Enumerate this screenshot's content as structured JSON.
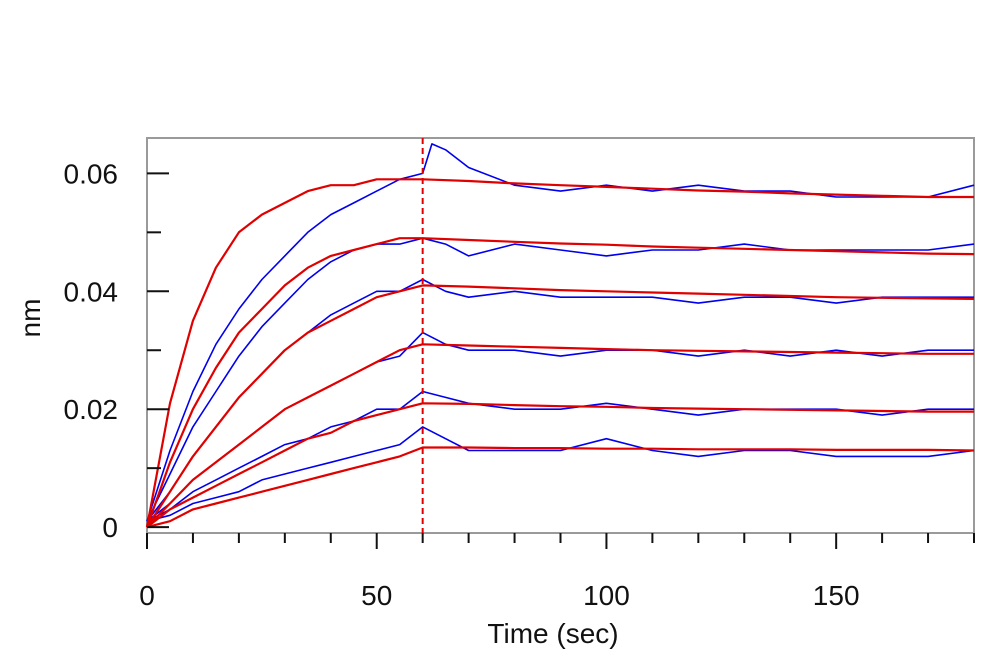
{
  "chart_data": {
    "type": "line",
    "title": "",
    "xlabel": "Time (sec)",
    "ylabel": "nm",
    "xlim": [
      0,
      180
    ],
    "ylim": [
      -0.001,
      0.066
    ],
    "x_ticks": [
      0,
      50,
      100,
      150
    ],
    "x_minor_step": 10,
    "y_ticks": [
      0,
      0.02,
      0.04,
      0.06
    ],
    "y_tick_labels": [
      "0",
      "0.02",
      "0.04",
      "0.06"
    ],
    "y_minor_step": 0.01,
    "grid": false,
    "legend": "none",
    "marker_line": {
      "x": 60,
      "style": "dashed",
      "color": "#e00000"
    },
    "colors": {
      "measured": "#0000ee",
      "fit": "#e00000",
      "axis": "#111111"
    },
    "series": [
      {
        "kind": "measured",
        "x": [
          0,
          5,
          10,
          15,
          20,
          25,
          30,
          35,
          40,
          45,
          50,
          55,
          60,
          62,
          65,
          70,
          80,
          90,
          100,
          110,
          120,
          130,
          140,
          150,
          160,
          170,
          180
        ],
        "y": [
          0.001,
          0.013,
          0.023,
          0.031,
          0.037,
          0.042,
          0.046,
          0.05,
          0.053,
          0.055,
          0.057,
          0.059,
          0.06,
          0.065,
          0.064,
          0.061,
          0.058,
          0.057,
          0.058,
          0.057,
          0.058,
          0.057,
          0.057,
          0.056,
          0.056,
          0.056,
          0.058
        ]
      },
      {
        "kind": "measured",
        "x": [
          0,
          5,
          10,
          15,
          20,
          25,
          30,
          35,
          40,
          45,
          50,
          55,
          60,
          65,
          70,
          80,
          90,
          100,
          110,
          120,
          130,
          140,
          150,
          160,
          170,
          180
        ],
        "y": [
          0.001,
          0.009,
          0.017,
          0.023,
          0.029,
          0.034,
          0.038,
          0.042,
          0.045,
          0.047,
          0.048,
          0.048,
          0.049,
          0.048,
          0.046,
          0.048,
          0.047,
          0.046,
          0.047,
          0.047,
          0.048,
          0.047,
          0.047,
          0.047,
          0.047,
          0.048
        ]
      },
      {
        "kind": "measured",
        "x": [
          0,
          5,
          10,
          15,
          20,
          25,
          30,
          35,
          40,
          45,
          50,
          55,
          60,
          65,
          70,
          80,
          90,
          100,
          110,
          120,
          130,
          140,
          150,
          160,
          170,
          180
        ],
        "y": [
          0.001,
          0.006,
          0.012,
          0.017,
          0.022,
          0.026,
          0.03,
          0.033,
          0.036,
          0.038,
          0.04,
          0.04,
          0.042,
          0.04,
          0.039,
          0.04,
          0.039,
          0.039,
          0.039,
          0.038,
          0.039,
          0.039,
          0.038,
          0.039,
          0.039,
          0.039
        ]
      },
      {
        "kind": "measured",
        "x": [
          0,
          5,
          10,
          15,
          20,
          25,
          30,
          35,
          40,
          45,
          50,
          55,
          60,
          65,
          70,
          80,
          90,
          100,
          110,
          120,
          130,
          140,
          150,
          160,
          170,
          180
        ],
        "y": [
          0.001,
          0.004,
          0.008,
          0.011,
          0.014,
          0.017,
          0.02,
          0.022,
          0.024,
          0.026,
          0.028,
          0.029,
          0.033,
          0.031,
          0.03,
          0.03,
          0.029,
          0.03,
          0.03,
          0.029,
          0.03,
          0.029,
          0.03,
          0.029,
          0.03,
          0.03
        ]
      },
      {
        "kind": "measured",
        "x": [
          0,
          5,
          10,
          15,
          20,
          25,
          30,
          35,
          40,
          45,
          50,
          55,
          60,
          65,
          70,
          80,
          90,
          100,
          110,
          120,
          130,
          140,
          150,
          160,
          170,
          180
        ],
        "y": [
          0.001,
          0.003,
          0.006,
          0.008,
          0.01,
          0.012,
          0.014,
          0.015,
          0.017,
          0.018,
          0.02,
          0.02,
          0.023,
          0.022,
          0.021,
          0.02,
          0.02,
          0.021,
          0.02,
          0.019,
          0.02,
          0.02,
          0.02,
          0.019,
          0.02,
          0.02
        ]
      },
      {
        "kind": "measured",
        "x": [
          0,
          5,
          10,
          15,
          20,
          25,
          30,
          35,
          40,
          45,
          50,
          55,
          60,
          65,
          70,
          80,
          90,
          100,
          110,
          120,
          130,
          140,
          150,
          160,
          170,
          180
        ],
        "y": [
          0.001,
          0.002,
          0.004,
          0.005,
          0.006,
          0.008,
          0.009,
          0.01,
          0.011,
          0.012,
          0.013,
          0.014,
          0.017,
          0.015,
          0.013,
          0.013,
          0.013,
          0.015,
          0.013,
          0.012,
          0.013,
          0.013,
          0.012,
          0.012,
          0.012,
          0.013
        ]
      },
      {
        "kind": "fit",
        "x": [
          0,
          5,
          10,
          15,
          20,
          25,
          30,
          35,
          40,
          45,
          50,
          55,
          60,
          70,
          80,
          90,
          100,
          110,
          120,
          130,
          140,
          150,
          160,
          170,
          180
        ],
        "y": [
          0.0,
          0.021,
          0.035,
          0.044,
          0.05,
          0.053,
          0.055,
          0.057,
          0.058,
          0.058,
          0.059,
          0.059,
          0.059,
          0.0587,
          0.0583,
          0.058,
          0.0577,
          0.0574,
          0.0571,
          0.0569,
          0.0566,
          0.0564,
          0.0562,
          0.056,
          0.056
        ]
      },
      {
        "kind": "fit",
        "x": [
          0,
          5,
          10,
          15,
          20,
          25,
          30,
          35,
          40,
          45,
          50,
          55,
          60,
          70,
          80,
          90,
          100,
          110,
          120,
          130,
          140,
          150,
          160,
          170,
          180
        ],
        "y": [
          0.0,
          0.011,
          0.02,
          0.027,
          0.033,
          0.037,
          0.041,
          0.044,
          0.046,
          0.047,
          0.048,
          0.049,
          0.049,
          0.0487,
          0.0484,
          0.0481,
          0.0479,
          0.0476,
          0.0474,
          0.0472,
          0.047,
          0.0468,
          0.0466,
          0.0464,
          0.0463
        ]
      },
      {
        "kind": "fit",
        "x": [
          0,
          5,
          10,
          15,
          20,
          25,
          30,
          35,
          40,
          45,
          50,
          55,
          60,
          70,
          80,
          90,
          100,
          110,
          120,
          130,
          140,
          150,
          160,
          170,
          180
        ],
        "y": [
          0.0,
          0.006,
          0.012,
          0.017,
          0.022,
          0.026,
          0.03,
          0.033,
          0.035,
          0.037,
          0.039,
          0.04,
          0.041,
          0.0408,
          0.0405,
          0.0402,
          0.04,
          0.0398,
          0.0396,
          0.0394,
          0.0392,
          0.039,
          0.0389,
          0.0388,
          0.0387
        ]
      },
      {
        "kind": "fit",
        "x": [
          0,
          5,
          10,
          15,
          20,
          25,
          30,
          35,
          40,
          45,
          50,
          55,
          60,
          70,
          80,
          90,
          100,
          110,
          120,
          130,
          140,
          150,
          160,
          170,
          180
        ],
        "y": [
          0.0,
          0.004,
          0.008,
          0.011,
          0.014,
          0.017,
          0.02,
          0.022,
          0.024,
          0.026,
          0.028,
          0.03,
          0.031,
          0.0308,
          0.0306,
          0.0304,
          0.0302,
          0.03,
          0.0299,
          0.0298,
          0.0297,
          0.0296,
          0.0295,
          0.0294,
          0.0294
        ]
      },
      {
        "kind": "fit",
        "x": [
          0,
          5,
          10,
          15,
          20,
          25,
          30,
          35,
          40,
          45,
          50,
          55,
          60,
          70,
          80,
          90,
          100,
          110,
          120,
          130,
          140,
          150,
          160,
          170,
          180
        ],
        "y": [
          0.0,
          0.003,
          0.005,
          0.007,
          0.009,
          0.011,
          0.013,
          0.015,
          0.016,
          0.018,
          0.019,
          0.02,
          0.021,
          0.0209,
          0.0207,
          0.0205,
          0.0204,
          0.0202,
          0.0201,
          0.02,
          0.0199,
          0.0198,
          0.0197,
          0.0196,
          0.0196
        ]
      },
      {
        "kind": "fit",
        "x": [
          0,
          5,
          10,
          15,
          20,
          25,
          30,
          35,
          40,
          45,
          50,
          55,
          60,
          70,
          80,
          90,
          100,
          110,
          120,
          130,
          140,
          150,
          160,
          170,
          180
        ],
        "y": [
          0.0,
          0.001,
          0.003,
          0.004,
          0.005,
          0.006,
          0.007,
          0.008,
          0.009,
          0.01,
          0.011,
          0.012,
          0.0135,
          0.0135,
          0.0134,
          0.0134,
          0.0133,
          0.0133,
          0.0132,
          0.0132,
          0.0132,
          0.0131,
          0.0131,
          0.0131,
          0.013
        ]
      }
    ]
  }
}
